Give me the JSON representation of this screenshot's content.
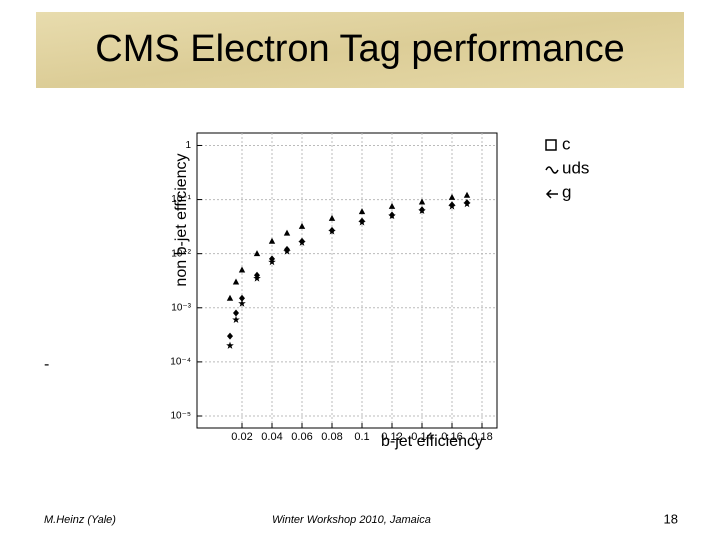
{
  "slide_title": "CMS Electron Tag performance",
  "stray_text": "-",
  "footer": {
    "author": "M.Heinz (Yale)",
    "event": "Winter Workshop 2010, Jamaica",
    "page": "18"
  },
  "chart_data": {
    "type": "scatter",
    "x_label": "b-jet efficiency",
    "y_label": "non b-jet efficiency",
    "ylog": true,
    "grid": true,
    "legend": "outside-top-right",
    "xlim": [
      -0.01,
      0.19
    ],
    "xticks": [
      0.02,
      0.04,
      0.06,
      0.08,
      0.1,
      0.12,
      0.14,
      0.16,
      0.18
    ],
    "ylim": [
      6e-06,
      1.7
    ],
    "yticks": [
      {
        "value": 1e-05,
        "label": "10⁻⁵"
      },
      {
        "value": 0.0001,
        "label": "10⁻⁴"
      },
      {
        "value": 0.001,
        "label": "10⁻³"
      },
      {
        "value": 0.01,
        "label": "10⁻²"
      },
      {
        "value": 0.1,
        "label": "10⁻¹"
      },
      1
    ],
    "x": [
      0.012,
      0.016,
      0.02,
      0.03,
      0.04,
      0.05,
      0.06,
      0.08,
      0.1,
      0.12,
      0.14,
      0.16,
      0.17
    ],
    "series": [
      {
        "name": "c",
        "color": "#000000",
        "marker": "triangle",
        "values": [
          0.0015,
          0.003,
          0.005,
          0.01,
          0.017,
          0.024,
          0.032,
          0.045,
          0.06,
          0.075,
          0.09,
          0.11,
          0.12
        ]
      },
      {
        "name": "uds",
        "color": "#000000",
        "marker": "diamond",
        "values": [
          0.0003,
          0.0008,
          0.0015,
          0.004,
          0.008,
          0.012,
          0.017,
          0.027,
          0.04,
          0.052,
          0.065,
          0.08,
          0.088
        ]
      },
      {
        "name": "g",
        "color": "#000000",
        "marker": "star",
        "values": [
          0.0002,
          0.0006,
          0.0012,
          0.0035,
          0.007,
          0.011,
          0.016,
          0.026,
          0.038,
          0.05,
          0.062,
          0.075,
          0.083
        ]
      }
    ]
  }
}
